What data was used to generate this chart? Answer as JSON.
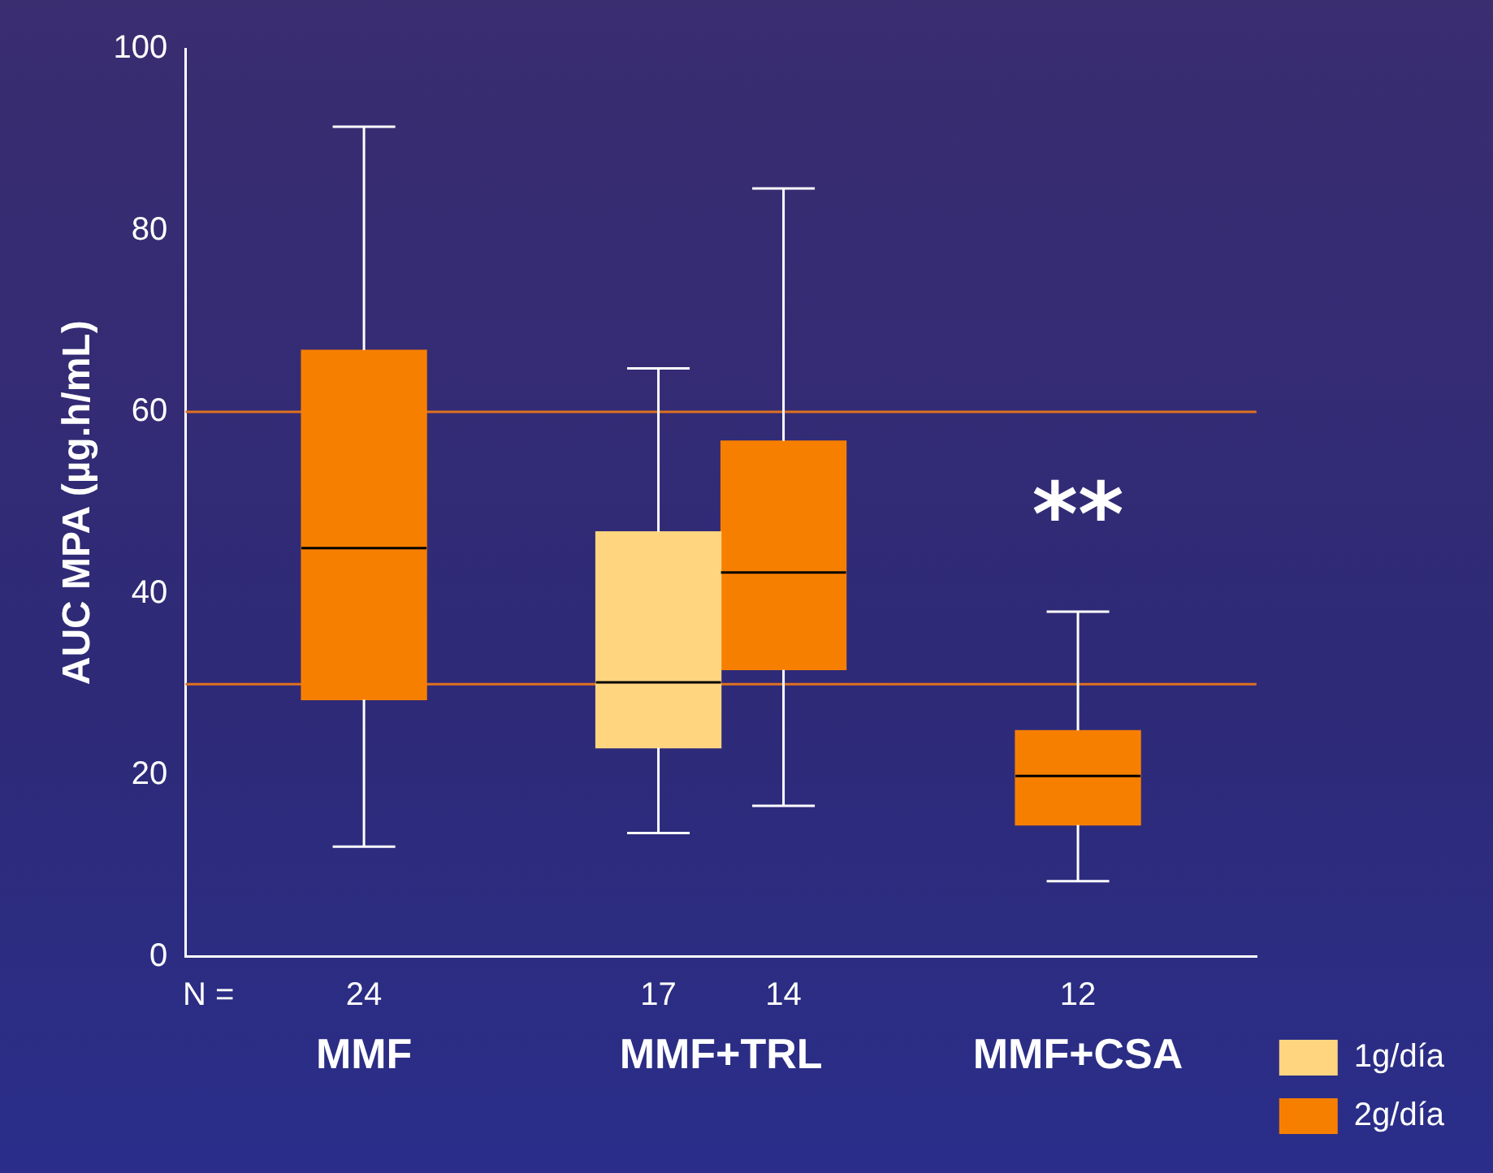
{
  "chart_data": {
    "type": "box",
    "ylabel": "AUC MPA (µg.h/mL)",
    "categories": [
      "MMF",
      "MMF+TRL",
      "MMF+CSA"
    ],
    "series": [
      {
        "name": "1g/día",
        "color": "#ffd580",
        "boxes": [
          null,
          {
            "low": 13.6,
            "q1": 23,
            "median": 30.2,
            "q3": 46.8,
            "high": 64.8
          },
          null
        ]
      },
      {
        "name": "2g/día",
        "color": "#f77f00",
        "boxes": [
          {
            "low": 12.1,
            "q1": 28.3,
            "median": 45,
            "q3": 66.8,
            "high": 91.4
          },
          {
            "low": 16.6,
            "q1": 31.6,
            "median": 42.3,
            "q3": 56.8,
            "high": 84.6
          },
          {
            "low": 8.3,
            "q1": 14.5,
            "median": 19.9,
            "q3": 24.9,
            "high": 38
          }
        ]
      }
    ],
    "ylim": [
      0,
      100
    ],
    "yticks": [
      0,
      20,
      40,
      60,
      80,
      100
    ],
    "grid": false,
    "legend": "bottom right",
    "ref_lines": [
      {
        "axis": "y",
        "value": 30,
        "color": "#e07020"
      },
      {
        "axis": "y",
        "value": 60,
        "color": "#e07020"
      }
    ],
    "annotations": [
      "N =",
      "24",
      "17",
      "14",
      "12",
      "**"
    ]
  }
}
